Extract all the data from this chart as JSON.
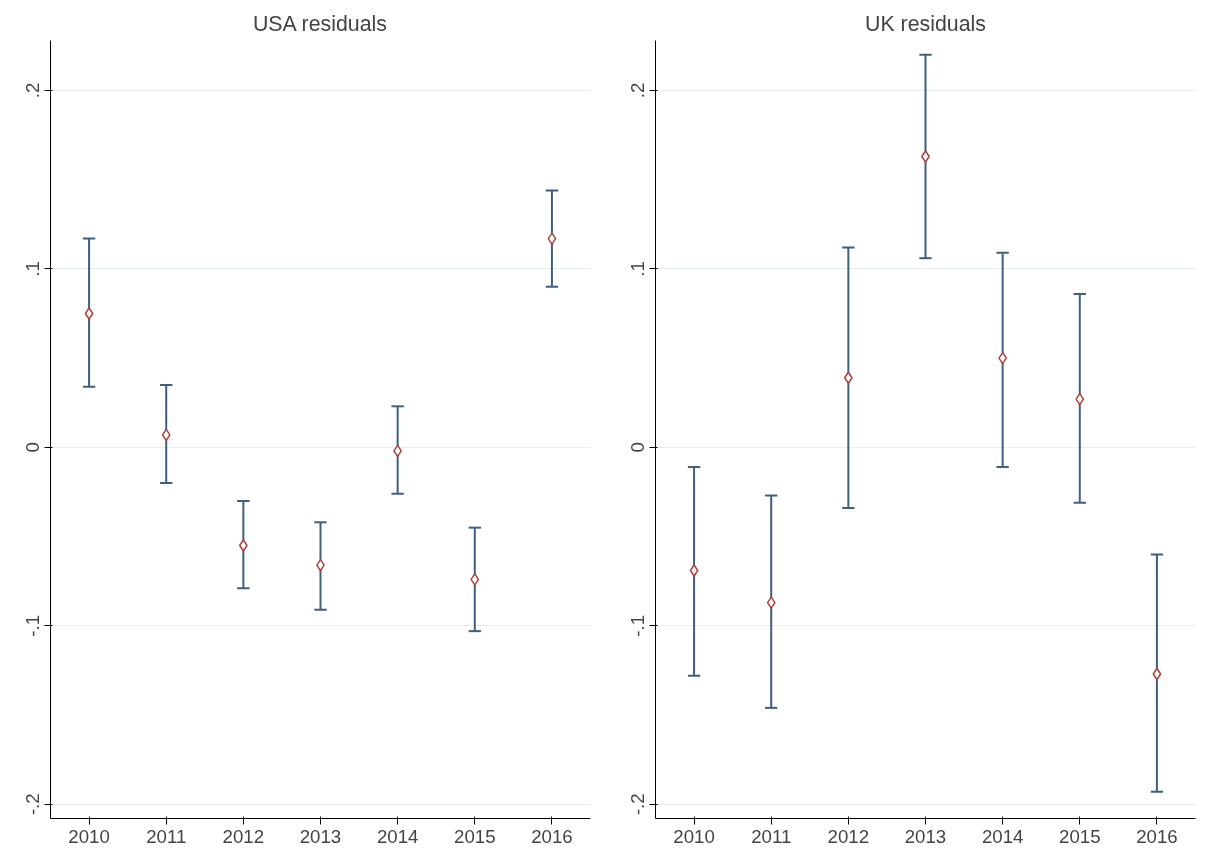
{
  "chart_data": [
    {
      "type": "scatter",
      "title": "USA residuals",
      "categories": [
        "2010",
        "2011",
        "2012",
        "2013",
        "2014",
        "2015",
        "2016"
      ],
      "series": [
        {
          "color": "#b0403a",
          "values": [
            0.075,
            0.007,
            -0.055,
            -0.066,
            -0.002,
            -0.074,
            0.117
          ],
          "errors": [
            [
              0.034,
              0.117
            ],
            [
              -0.02,
              0.035
            ],
            [
              -0.079,
              -0.03
            ],
            [
              -0.091,
              -0.042
            ],
            [
              -0.026,
              0.023
            ],
            [
              -0.103,
              -0.045
            ],
            [
              0.09,
              0.144
            ]
          ]
        }
      ],
      "ylim": [
        -0.208,
        0.228
      ],
      "yticks": [
        {
          "value": -0.2,
          "label": "-.2"
        },
        {
          "value": -0.1,
          "label": "-.1"
        },
        0,
        {
          "value": 0.1,
          "label": ".1"
        },
        {
          "value": 0.2,
          "label": ".2"
        }
      ],
      "grid": "y",
      "marker": "diamond"
    },
    {
      "type": "scatter",
      "title": "UK residuals",
      "categories": [
        "2010",
        "2011",
        "2012",
        "2013",
        "2014",
        "2015",
        "2016"
      ],
      "series": [
        {
          "color": "#b0403a",
          "values": [
            -0.069,
            -0.087,
            0.039,
            0.163,
            0.05,
            0.027,
            -0.127
          ],
          "errors": [
            [
              -0.128,
              -0.011
            ],
            [
              -0.146,
              -0.027
            ],
            [
              -0.034,
              0.112
            ],
            [
              0.106,
              0.22
            ],
            [
              -0.011,
              0.109
            ],
            [
              -0.031,
              0.086
            ],
            [
              -0.193,
              -0.06
            ]
          ]
        }
      ],
      "ylim": [
        -0.208,
        0.228
      ],
      "yticks": [
        {
          "value": -0.2,
          "label": "-.2"
        },
        {
          "value": -0.1,
          "label": "-.1"
        },
        0,
        {
          "value": 0.1,
          "label": ".1"
        },
        {
          "value": 0.2,
          "label": ".2"
        }
      ],
      "grid": "y",
      "marker": "diamond"
    }
  ]
}
